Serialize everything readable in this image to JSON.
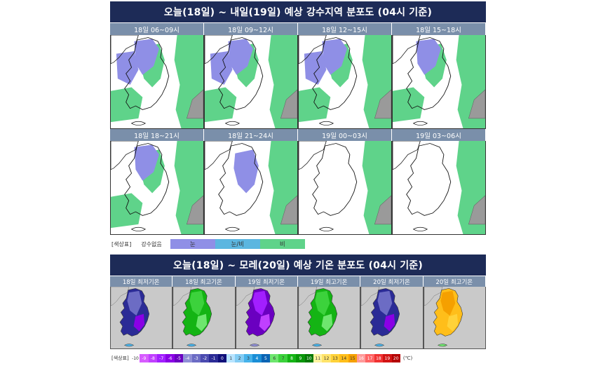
{
  "section1": {
    "title": "오늘(18일) ~ 내일(19일) 예상 강수지역 분포도 (04시 기준)",
    "panels": [
      {
        "label": "18일 06~09시",
        "level": 3
      },
      {
        "label": "18일 09~12시",
        "level": 3
      },
      {
        "label": "18일 12~15시",
        "level": 3
      },
      {
        "label": "18일 15~18시",
        "level": 2
      },
      {
        "label": "18일 18~21시",
        "level": 2
      },
      {
        "label": "18일 21~24시",
        "level": 1
      },
      {
        "label": "19일 00~03시",
        "level": 0
      },
      {
        "label": "19일 03~06시",
        "level": 0
      }
    ],
    "legend": {
      "title": "[색상표]",
      "items": [
        {
          "label": "강수없음",
          "color": "#ffffff"
        },
        {
          "label": "눈",
          "color": "#8f8fe6"
        },
        {
          "label": "눈/비",
          "color": "#5bb6e0"
        },
        {
          "label": "비",
          "color": "#5fd38a"
        }
      ]
    },
    "colors": {
      "snow": "#8f8fe6",
      "rain": "#5fd38a",
      "mix": "#5bb6e0"
    }
  },
  "section2": {
    "title": "오늘(18일) ~ 모레(20일) 예상 기온 분포도 (04시 기준)",
    "panels": [
      {
        "label": "18일 최저기온",
        "palette": "cold"
      },
      {
        "label": "18일 최고기온",
        "palette": "green"
      },
      {
        "label": "19일 최저기온",
        "palette": "purple"
      },
      {
        "label": "19일 최고기온",
        "palette": "green"
      },
      {
        "label": "20일 최저기온",
        "palette": "cold"
      },
      {
        "label": "20일 최고기온",
        "palette": "warm"
      }
    ],
    "legend": {
      "title": "[색상표]",
      "unit": "(℃)",
      "scale": [
        {
          "v": "-10",
          "c": "#ffffff",
          "t": "#333"
        },
        {
          "v": "-9",
          "c": "#d75cff",
          "t": "#fff"
        },
        {
          "v": "-8",
          "c": "#c040ff",
          "t": "#fff"
        },
        {
          "v": "-7",
          "c": "#a21fff",
          "t": "#fff"
        },
        {
          "v": "-6",
          "c": "#8a00e6",
          "t": "#fff"
        },
        {
          "v": "-5",
          "c": "#6a00c0",
          "t": "#fff"
        },
        {
          "v": "-4",
          "c": "#8f8fd6",
          "t": "#fff"
        },
        {
          "v": "-3",
          "c": "#6c6cc4",
          "t": "#fff"
        },
        {
          "v": "-2",
          "c": "#4b4bb0",
          "t": "#fff"
        },
        {
          "v": "-1",
          "c": "#2b2b96",
          "t": "#fff"
        },
        {
          "v": "0",
          "c": "#10107a",
          "t": "#fff"
        },
        {
          "v": "1",
          "c": "#b8e4ff",
          "t": "#333"
        },
        {
          "v": "2",
          "c": "#84cdf4",
          "t": "#333"
        },
        {
          "v": "3",
          "c": "#46b2ea",
          "t": "#333"
        },
        {
          "v": "4",
          "c": "#1a8ed6",
          "t": "#fff"
        },
        {
          "v": "5",
          "c": "#0a64b4",
          "t": "#fff"
        },
        {
          "v": "6",
          "c": "#6ee66e",
          "t": "#333"
        },
        {
          "v": "7",
          "c": "#3cd23c",
          "t": "#333"
        },
        {
          "v": "8",
          "c": "#14b414",
          "t": "#fff"
        },
        {
          "v": "9",
          "c": "#0a960a",
          "t": "#fff"
        },
        {
          "v": "10",
          "c": "#057805",
          "t": "#fff"
        },
        {
          "v": "11",
          "c": "#fff3a0",
          "t": "#333"
        },
        {
          "v": "12",
          "c": "#ffe36a",
          "t": "#333"
        },
        {
          "v": "13",
          "c": "#ffd23a",
          "t": "#333"
        },
        {
          "v": "14",
          "c": "#ffbe1a",
          "t": "#333"
        },
        {
          "v": "15",
          "c": "#f5a000",
          "t": "#333"
        },
        {
          "v": "16",
          "c": "#ff9a9a",
          "t": "#fff"
        },
        {
          "v": "17",
          "c": "#ff6464",
          "t": "#fff"
        },
        {
          "v": "18",
          "c": "#f03232",
          "t": "#fff"
        },
        {
          "v": "19",
          "c": "#d21414",
          "t": "#fff"
        },
        {
          "v": "20",
          "c": "#b40000",
          "t": "#fff"
        }
      ]
    }
  }
}
